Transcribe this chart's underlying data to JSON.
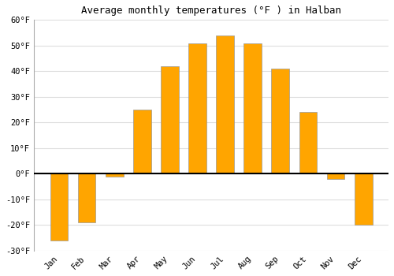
{
  "title": "Average monthly temperatures (°F ) in Halban",
  "months": [
    "Jan",
    "Feb",
    "Mar",
    "Apr",
    "May",
    "Jun",
    "Jul",
    "Aug",
    "Sep",
    "Oct",
    "Nov",
    "Dec"
  ],
  "values": [
    -26,
    -19,
    -1,
    25,
    42,
    51,
    54,
    51,
    41,
    24,
    -2,
    -20
  ],
  "bar_color_top": "#FFC020",
  "bar_color_bottom": "#FFA500",
  "bar_edge_color": "#999999",
  "bar_edge_width": 0.5,
  "bar_width": 0.65,
  "ylim": [
    -30,
    60
  ],
  "yticks": [
    -30,
    -20,
    -10,
    0,
    10,
    20,
    30,
    40,
    50,
    60
  ],
  "ytick_labels": [
    "-30°F",
    "-20°F",
    "-10°F",
    "0°F",
    "10°F",
    "20°F",
    "30°F",
    "40°F",
    "50°F",
    "60°F"
  ],
  "background_color": "#ffffff",
  "plot_bg_color": "#ffffff",
  "grid_color": "#dddddd",
  "zero_line_color": "#000000",
  "title_fontsize": 9,
  "tick_fontsize": 7.5
}
